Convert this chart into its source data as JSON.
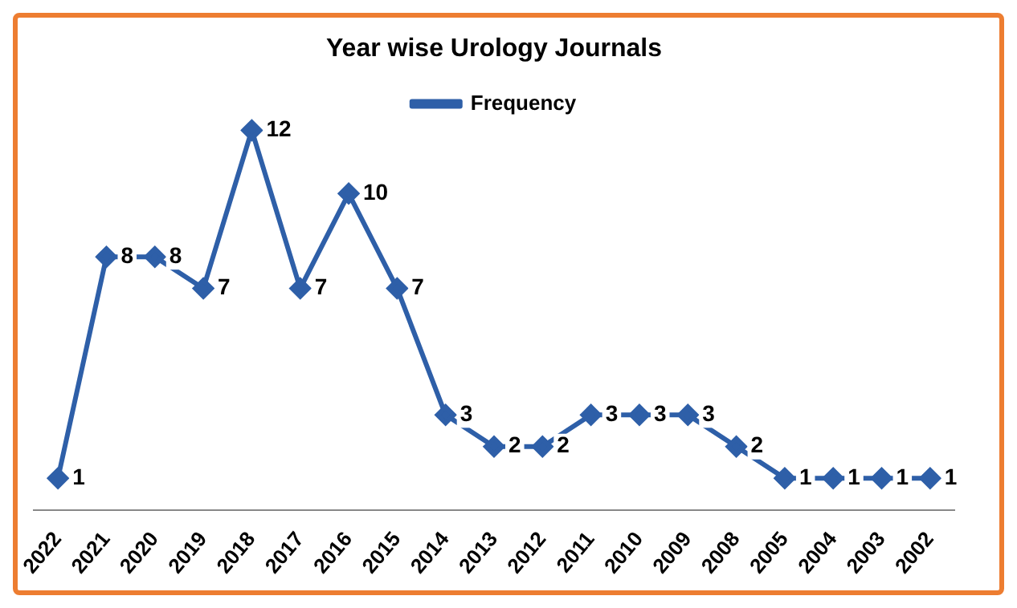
{
  "chart_data": {
    "type": "line",
    "title": "Year wise Urology Journals",
    "categories": [
      "2022",
      "2021",
      "2020",
      "2019",
      "2018",
      "2017",
      "2016",
      "2015",
      "2014",
      "2013",
      "2012",
      "2011",
      "2010",
      "2009",
      "2008",
      "2005",
      "2004",
      "2003",
      "2002"
    ],
    "series": [
      {
        "name": "Frequency",
        "color": "#2e5fa8",
        "values": [
          1,
          8,
          8,
          7,
          12,
          7,
          10,
          7,
          3,
          2,
          2,
          3,
          3,
          3,
          2,
          1,
          1,
          1,
          1
        ]
      }
    ],
    "data_labels": true,
    "legend": "top",
    "grid": false,
    "marker": "diamond",
    "line_style": "solid"
  }
}
